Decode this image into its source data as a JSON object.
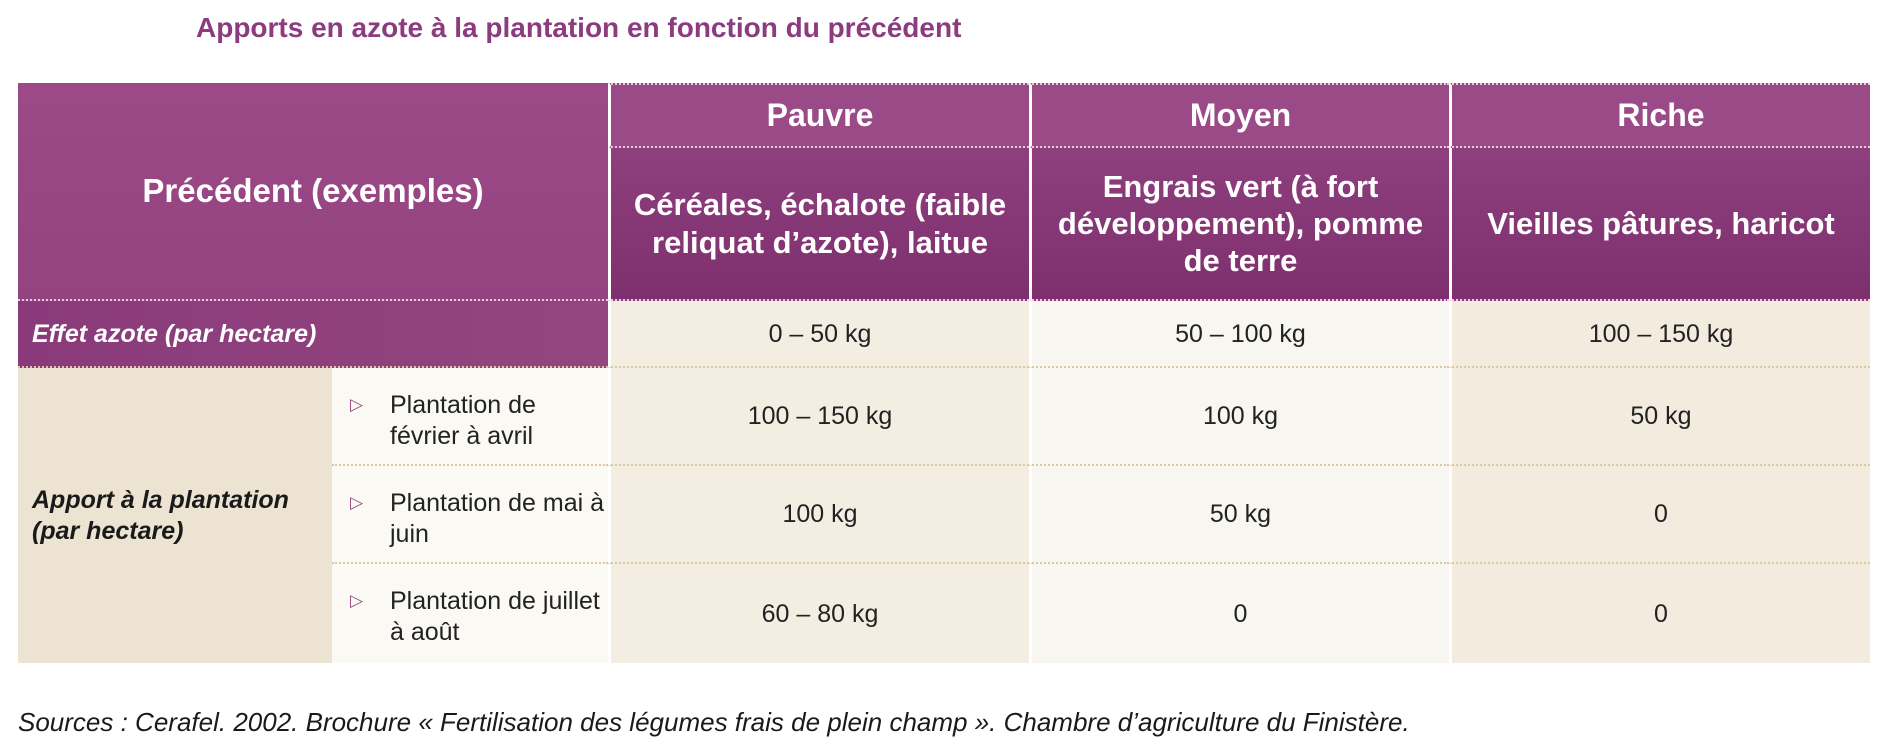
{
  "title": "Apports en azote à la plantation en fonction du précédent",
  "header": {
    "corner": "Précédent (exemples)",
    "levels": [
      "Pauvre",
      "Moyen",
      "Riche"
    ],
    "examples": [
      "Céréales, échalote (faible reliquat d’azote), laitue",
      "Engrais vert (à fort développement), pomme de terre",
      "Vieilles pâtures, haricot"
    ]
  },
  "effet": {
    "label": "Effet azote (par hectare)",
    "values": [
      "0 – 50 kg",
      "50 – 100 kg",
      "100 – 150 kg"
    ]
  },
  "apport": {
    "label": "Apport à la plantation (par hectare)",
    "rows": [
      {
        "label": "Plantation de février à avril",
        "values": [
          "100 – 150 kg",
          "100 kg",
          "50 kg"
        ]
      },
      {
        "label": "Plantation de mai à juin",
        "values": [
          "100 kg",
          "50 kg",
          "0"
        ]
      },
      {
        "label": "Plantation de juillet à août",
        "values": [
          "60 – 80 kg",
          "0",
          "0"
        ]
      }
    ]
  },
  "icons": {
    "row_bullet": "triangle-right-icon"
  },
  "colors": {
    "header_purple": "#9a4a86",
    "title_purple": "#8c3b7f",
    "body_beige": "#f4eee2"
  },
  "sources": "Sources : Cerafel. 2002. Brochure « Fertilisation des légumes frais de plein champ ». Chambre d’agriculture du Finistère."
}
